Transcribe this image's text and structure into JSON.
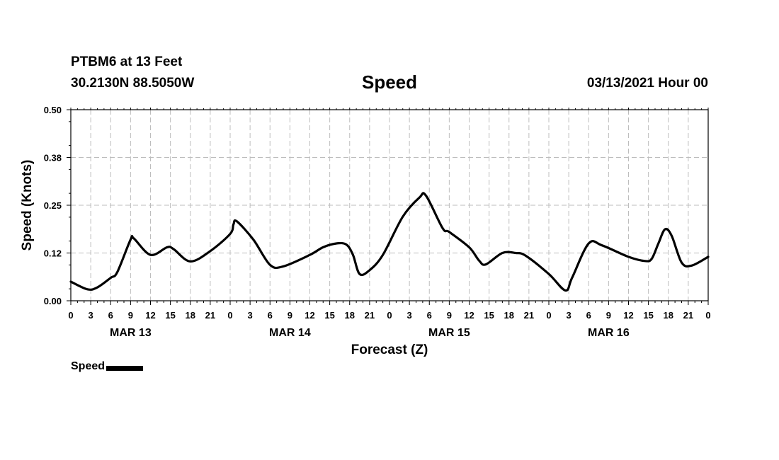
{
  "header": {
    "station": "PTBM6 at 13 Feet",
    "coords": "30.2130N 88.5050W",
    "title": "Speed",
    "timestamp": "03/13/2021 Hour 00"
  },
  "legend": {
    "label": "Speed"
  },
  "chart_data": {
    "type": "line",
    "title": "Speed",
    "xlabel": "Forecast (Z)",
    "ylabel": "Speed (Knots)",
    "ylim": [
      0,
      0.5
    ],
    "yticks": [
      "0.00",
      "0.12",
      "0.25",
      "0.38",
      "0.50"
    ],
    "xlim": [
      0,
      96
    ],
    "x_tick_step_hours": 3,
    "x_tick_labels": [
      "0",
      "3",
      "6",
      "9",
      "12",
      "15",
      "18",
      "21",
      "0",
      "3",
      "6",
      "9",
      "12",
      "15",
      "18",
      "21",
      "0",
      "3",
      "6",
      "9",
      "12",
      "15",
      "18",
      "21",
      "0",
      "3",
      "6",
      "9",
      "12",
      "15",
      "18",
      "21",
      "0"
    ],
    "day_labels": [
      {
        "label": "MAR 13",
        "hour": 9
      },
      {
        "label": "MAR 14",
        "hour": 33
      },
      {
        "label": "MAR 15",
        "hour": 57
      },
      {
        "label": "MAR 16",
        "hour": 81
      }
    ],
    "grid": true,
    "legend_position": "bottom-left",
    "series": [
      {
        "name": "Speed",
        "color": "#000000",
        "points": [
          [
            0,
            0.05
          ],
          [
            2.5,
            0.03
          ],
          [
            4,
            0.035
          ],
          [
            6,
            0.06
          ],
          [
            7,
            0.075
          ],
          [
            9,
            0.16
          ],
          [
            9.5,
            0.163
          ],
          [
            12,
            0.12
          ],
          [
            14.5,
            0.14
          ],
          [
            15.5,
            0.135
          ],
          [
            18,
            0.103
          ],
          [
            21,
            0.13
          ],
          [
            24,
            0.175
          ],
          [
            24.5,
            0.2
          ],
          [
            25,
            0.208
          ],
          [
            27.5,
            0.16
          ],
          [
            30,
            0.094
          ],
          [
            32,
            0.09
          ],
          [
            36,
            0.12
          ],
          [
            38,
            0.14
          ],
          [
            40,
            0.15
          ],
          [
            41.5,
            0.147
          ],
          [
            42.5,
            0.12
          ],
          [
            43.5,
            0.07
          ],
          [
            45,
            0.08
          ],
          [
            47,
            0.12
          ],
          [
            50,
            0.22
          ],
          [
            52.5,
            0.27
          ],
          [
            53.5,
            0.275
          ],
          [
            56,
            0.19
          ],
          [
            57,
            0.18
          ],
          [
            60,
            0.14
          ],
          [
            61.5,
            0.105
          ],
          [
            62.5,
            0.095
          ],
          [
            65,
            0.125
          ],
          [
            67,
            0.125
          ],
          [
            68.5,
            0.118
          ],
          [
            72,
            0.07
          ],
          [
            74.5,
            0.027
          ],
          [
            75.5,
            0.06
          ],
          [
            78,
            0.15
          ],
          [
            80,
            0.145
          ],
          [
            84,
            0.115
          ],
          [
            86.5,
            0.104
          ],
          [
            87.5,
            0.11
          ],
          [
            88.5,
            0.15
          ],
          [
            89.5,
            0.187
          ],
          [
            90.5,
            0.17
          ],
          [
            92,
            0.1
          ],
          [
            93.5,
            0.092
          ],
          [
            96,
            0.115
          ]
        ]
      }
    ]
  }
}
